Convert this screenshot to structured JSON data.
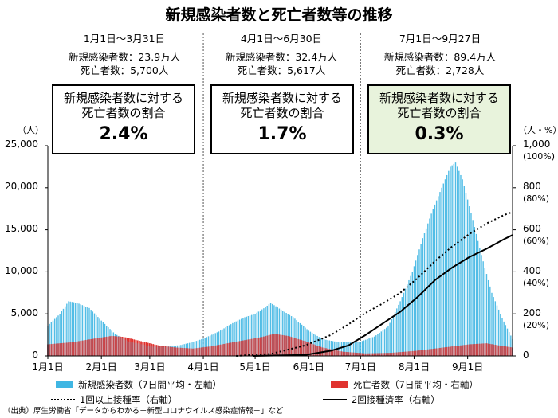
{
  "title": "新規感染者数と死亡者数等の推移",
  "periods": [
    {
      "label": "1月1日～3月31日",
      "cases_text": "新規感染者数：23.9万人",
      "deaths_text": "死亡者数：5,700人",
      "box_label_1": "新規感染者数に対する",
      "box_label_2": "死亡者数の割合",
      "ratio": "2.4%"
    },
    {
      "label": "4月1日～6月30日",
      "cases_text": "新規感染者数：32.4万人",
      "deaths_text": "死亡者数：5,617人",
      "box_label_1": "新規感染者数に対する",
      "box_label_2": "死亡者数の割合",
      "ratio": "1.7%"
    },
    {
      "label": "7月1日～9月27日",
      "cases_text": "新規感染者数：89.4万人",
      "deaths_text": "死亡者数：2,728人",
      "box_label_1": "新規感染者数に対する",
      "box_label_2": "死亡者数の割合",
      "ratio": "0.3%"
    }
  ],
  "left_axis": {
    "unit": "（人）",
    "ticks": [
      "25,000",
      "20,000",
      "15,000",
      "10,000",
      "5,000",
      "0"
    ]
  },
  "right_axis": {
    "unit": "（人・%）",
    "ticks": [
      {
        "main": "1,000",
        "pct": "(100%)"
      },
      {
        "main": "800",
        "pct": "(80%)"
      },
      {
        "main": "600",
        "pct": "(60%)"
      },
      {
        "main": "400",
        "pct": "(40%)"
      },
      {
        "main": "200",
        "pct": "(20%)"
      },
      {
        "main": "0",
        "pct": ""
      }
    ]
  },
  "x_ticks": [
    "1月1日",
    "2月1日",
    "3月1日",
    "4月1日",
    "5月1日",
    "6月1日",
    "7月1日",
    "8月1日",
    "9月1日"
  ],
  "legend": {
    "cases": "新規感染者数（7日間平均・左軸）",
    "deaths": "死亡者数（7日間平均・右軸）",
    "dose1": "1回以上接種率（右軸）",
    "dose2": "2回接種済率（右軸）"
  },
  "source": "（出典）厚生労働省「データからわかる－新型コロナウイルス感染症情報－」など",
  "colors": {
    "cases": "#3fb6e3",
    "deaths": "#e0332f",
    "highlight": "#e8f3dc"
  },
  "chart_data": {
    "type": "bar",
    "x_unit": "day of 2021 (1月1日 = day 1)",
    "cases_series": {
      "name": "新規感染者数（7日間平均・左軸）",
      "axis": "left",
      "ylim": [
        0,
        25000
      ],
      "points": [
        [
          1,
          3600
        ],
        [
          8,
          5000
        ],
        [
          13,
          6500
        ],
        [
          18,
          6300
        ],
        [
          25,
          5700
        ],
        [
          32,
          4200
        ],
        [
          40,
          2600
        ],
        [
          48,
          1700
        ],
        [
          55,
          1400
        ],
        [
          62,
          1100
        ],
        [
          70,
          1100
        ],
        [
          78,
          1300
        ],
        [
          85,
          1650
        ],
        [
          91,
          2050
        ],
        [
          100,
          2900
        ],
        [
          108,
          3900
        ],
        [
          115,
          4600
        ],
        [
          121,
          5000
        ],
        [
          127,
          5800
        ],
        [
          130,
          6300
        ],
        [
          136,
          5500
        ],
        [
          143,
          4600
        ],
        [
          152,
          3000
        ],
        [
          160,
          2000
        ],
        [
          170,
          1600
        ],
        [
          182,
          1700
        ],
        [
          190,
          2300
        ],
        [
          198,
          3500
        ],
        [
          205,
          6500
        ],
        [
          212,
          10000
        ],
        [
          218,
          14000
        ],
        [
          224,
          17500
        ],
        [
          230,
          20500
        ],
        [
          234,
          22500
        ],
        [
          237,
          23000
        ],
        [
          241,
          21000
        ],
        [
          246,
          17000
        ],
        [
          252,
          12000
        ],
        [
          258,
          7500
        ],
        [
          264,
          4500
        ],
        [
          270,
          2000
        ]
      ]
    },
    "deaths_series": {
      "name": "死亡者数（7日間平均・右軸）",
      "axis": "right",
      "ylim": [
        0,
        1000
      ],
      "points": [
        [
          1,
          55
        ],
        [
          15,
          65
        ],
        [
          30,
          85
        ],
        [
          38,
          95
        ],
        [
          45,
          90
        ],
        [
          55,
          70
        ],
        [
          65,
          50
        ],
        [
          75,
          40
        ],
        [
          85,
          35
        ],
        [
          95,
          45
        ],
        [
          105,
          60
        ],
        [
          115,
          75
        ],
        [
          125,
          90
        ],
        [
          132,
          105
        ],
        [
          140,
          95
        ],
        [
          150,
          70
        ],
        [
          160,
          40
        ],
        [
          172,
          20
        ],
        [
          185,
          12
        ],
        [
          200,
          15
        ],
        [
          215,
          25
        ],
        [
          230,
          40
        ],
        [
          245,
          55
        ],
        [
          255,
          60
        ],
        [
          262,
          50
        ],
        [
          270,
          40
        ]
      ]
    },
    "dose1_series": {
      "name": "1回以上接種率（右軸）",
      "axis": "right",
      "style": "dotted",
      "points": [
        [
          110,
          0
        ],
        [
          130,
          10
        ],
        [
          150,
          50
        ],
        [
          165,
          100
        ],
        [
          175,
          150
        ],
        [
          185,
          205
        ],
        [
          195,
          250
        ],
        [
          205,
          300
        ],
        [
          215,
          370
        ],
        [
          225,
          450
        ],
        [
          235,
          520
        ],
        [
          245,
          580
        ],
        [
          255,
          630
        ],
        [
          265,
          670
        ],
        [
          270,
          685
        ]
      ]
    },
    "dose2_series": {
      "name": "2回接種済率（右軸）",
      "axis": "right",
      "style": "solid",
      "points": [
        [
          120,
          0
        ],
        [
          150,
          5
        ],
        [
          165,
          25
        ],
        [
          175,
          50
        ],
        [
          185,
          100
        ],
        [
          195,
          155
        ],
        [
          205,
          210
        ],
        [
          215,
          280
        ],
        [
          225,
          360
        ],
        [
          235,
          420
        ],
        [
          245,
          470
        ],
        [
          255,
          510
        ],
        [
          265,
          555
        ],
        [
          270,
          575
        ]
      ]
    },
    "x_tick_days": [
      1,
      32,
      60,
      91,
      121,
      152,
      182,
      213,
      244
    ],
    "period_dividers_day": [
      91,
      182
    ],
    "xlim": [
      1,
      270
    ],
    "grid": false,
    "legend_position": "bottom"
  }
}
